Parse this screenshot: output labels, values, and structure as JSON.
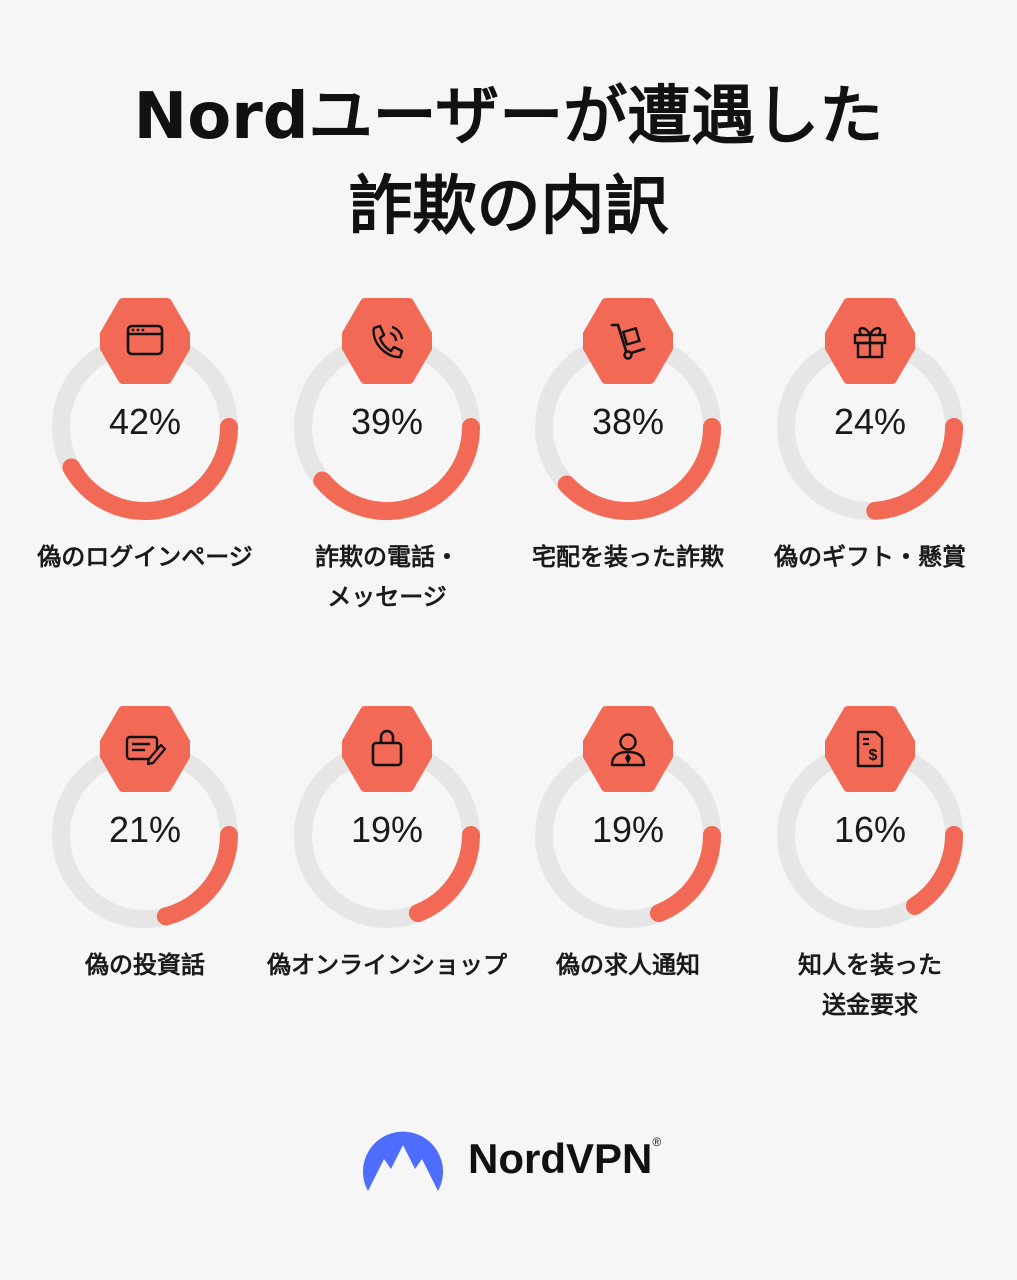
{
  "title": [
    "Nordユーザーが遭遇した",
    "詐欺の内訳"
  ],
  "colors": {
    "accent": "#f26a55",
    "track": "#e6e6e6",
    "background": "#f6f6f6",
    "logo_blue": "#4f6dfc"
  },
  "chart_data": {
    "type": "radial-progress",
    "title": "Nordユーザーが遭遇した詐欺の内訳",
    "unit": "%",
    "categories": [
      "偽のログインページ",
      "詐欺の電話・メッセージ",
      "宅配を装った詐欺",
      "偽のギフト・懸賞",
      "偽の投資話",
      "偽オンラインショップ",
      "偽の求人通知",
      "知人を装った送金要求"
    ],
    "values": [
      42,
      39,
      38,
      24,
      21,
      19,
      19,
      16
    ]
  },
  "items": [
    {
      "percent_label": "42%",
      "label_lines": [
        "偽のログインページ"
      ],
      "icon": "browser-window-icon"
    },
    {
      "percent_label": "39%",
      "label_lines": [
        "詐欺の電話・",
        "メッセージ"
      ],
      "icon": "phone-ringing-icon"
    },
    {
      "percent_label": "38%",
      "label_lines": [
        "宅配を装った詐欺"
      ],
      "icon": "hand-truck-icon"
    },
    {
      "percent_label": "24%",
      "label_lines": [
        "偽のギフト・懸賞"
      ],
      "icon": "gift-icon"
    },
    {
      "percent_label": "21%",
      "label_lines": [
        "偽の投資話"
      ],
      "icon": "document-pen-icon"
    },
    {
      "percent_label": "19%",
      "label_lines": [
        "偽オンラインショップ"
      ],
      "icon": "shopping-bag-icon"
    },
    {
      "percent_label": "19%",
      "label_lines": [
        "偽の求人通知"
      ],
      "icon": "businessman-icon"
    },
    {
      "percent_label": "16%",
      "label_lines": [
        "知人を装った",
        "送金要求"
      ],
      "icon": "invoice-dollar-icon"
    }
  ],
  "brand": {
    "name": "NordVPN",
    "mark": "®",
    "icon": "nordvpn-mountain-logo-icon"
  }
}
